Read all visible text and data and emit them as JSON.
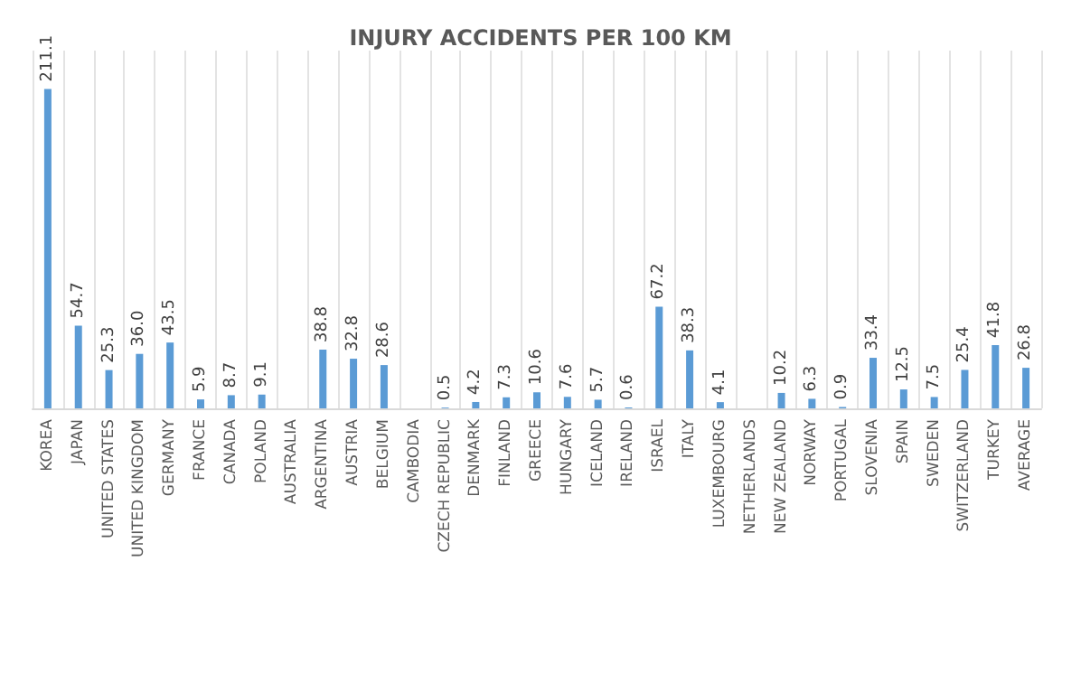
{
  "chart_data": {
    "type": "bar",
    "title": "INJURY ACCIDENTS PER 100 KM",
    "categories": [
      "KOREA",
      "JAPAN",
      "UNITED STATES",
      "UNITED KINGDOM",
      "GERMANY",
      "FRANCE",
      "CANADA",
      "POLAND",
      "AUSTRALIA",
      "ARGENTINA",
      "AUSTRIA",
      "BELGIUM",
      "CAMBODIA",
      "CZECH REPUBLIC",
      "DENMARK",
      "FINLAND",
      "GREECE",
      "HUNGARY",
      "ICELAND",
      "IRELAND",
      "ISRAEL",
      "ITALY",
      "LUXEMBOURG",
      "NETHERLANDS",
      "NEW ZEALAND",
      "NORWAY",
      "PORTUGAL",
      "SLOVENIA",
      "SPAIN",
      "SWEDEN",
      "SWITZERLAND",
      "TURKEY",
      "AVERAGE"
    ],
    "values": [
      211.1,
      54.7,
      25.3,
      36.0,
      43.5,
      5.9,
      8.7,
      9.1,
      null,
      38.8,
      32.8,
      28.6,
      null,
      0.5,
      4.2,
      7.3,
      10.6,
      7.6,
      5.7,
      0.6,
      67.2,
      38.3,
      4.1,
      null,
      10.2,
      6.3,
      0.9,
      33.4,
      12.5,
      7.5,
      25.4,
      41.8,
      26.8
    ],
    "value_labels": [
      "211.1",
      "54.7",
      "25.3",
      "36.0",
      "43.5",
      "5.9",
      "8.7",
      "9.1",
      null,
      "38.8",
      "32.8",
      "28.6",
      null,
      "0.5",
      "4.2",
      "7.3",
      "10.6",
      "7.6",
      "5.7",
      "0.6",
      "67.2",
      "38.3",
      "4.1",
      null,
      "10.2",
      "6.3",
      "0.9",
      "33.4",
      "12.5",
      "7.5",
      "25.4",
      "41.8",
      "26.8"
    ],
    "color": "#5b9bd5",
    "grid": "x",
    "tick_labels": "x"
  }
}
